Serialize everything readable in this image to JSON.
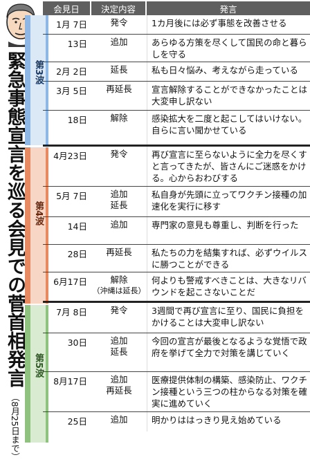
{
  "title": "緊急事態宣言を巡る会見での菅首相発言",
  "subtitle": "（8月25日まで）",
  "header": {
    "date": "会見日",
    "decision": "決定内容",
    "statement": "発言"
  },
  "waves": [
    {
      "label": "第3波",
      "color": "#8fb7e6"
    },
    {
      "label": "第4波",
      "color": "#e78a61"
    },
    {
      "label": "第5波",
      "color": "#8fc17f"
    }
  ],
  "rows": [
    {
      "date": "1月 7日",
      "decision": "発令",
      "decision_sub": "",
      "statement": "1カ月後には必ず事態を改善させる"
    },
    {
      "date": "13日",
      "decision": "追加",
      "decision_sub": "",
      "statement": "あらゆる方策を尽くして国民の命と暮らしを守る"
    },
    {
      "date": "2月 2日",
      "decision": "延長",
      "decision_sub": "",
      "statement": "私も日々悩み、考えながら走っている"
    },
    {
      "date": "3月 5日",
      "decision": "再延長",
      "decision_sub": "",
      "statement": "宣言解除することができなかったことは大変申し訳ない"
    },
    {
      "date": "18日",
      "decision": "解除",
      "decision_sub": "",
      "statement": "感染拡大を二度と起こしてはいけない。自らに言い聞かせている"
    },
    {
      "date": "4月23日",
      "decision": "発令",
      "decision_sub": "",
      "statement": "再び宣言に至らないように全力を尽くすと言ってきたが、皆さんにご迷惑をかける。心からおわびする"
    },
    {
      "date": "5月 7日",
      "decision": "追加\n延長",
      "decision_sub": "",
      "statement": "私自身が先頭に立ってワクチン接種の加速化を実行に移す"
    },
    {
      "date": "14日",
      "decision": "追加",
      "decision_sub": "",
      "statement": "専門家の意見も尊重し、判断を行った"
    },
    {
      "date": "28日",
      "decision": "再延長",
      "decision_sub": "",
      "statement": "私たちの力を結集すれば、必ずウイルスに勝つことができる"
    },
    {
      "date": "6月17日",
      "decision": "解除",
      "decision_sub": "（沖縄は延長）",
      "statement": "何よりも警戒すべきことは、大きなリバウンドを起こさないことだ"
    },
    {
      "date": "7月 8日",
      "decision": "発令",
      "decision_sub": "",
      "statement": "3週間で再び宣言に至り、国民に負担をかけることは大変申し訳ない"
    },
    {
      "date": "30日",
      "decision": "追加\n延長",
      "decision_sub": "",
      "statement": "今回の宣言が最後となるような覚悟で政府を挙げて全力で対策を講じていく"
    },
    {
      "date": "8月17日",
      "decision": "追加\n再延長",
      "decision_sub": "",
      "statement": "医療提供体制の構築、感染防止、ワクチン接種という三つの柱からなる対策を確実に進めていく"
    },
    {
      "date": "25日",
      "decision": "追加",
      "decision_sub": "",
      "statement": "明かりははっきり見え始めている"
    }
  ]
}
